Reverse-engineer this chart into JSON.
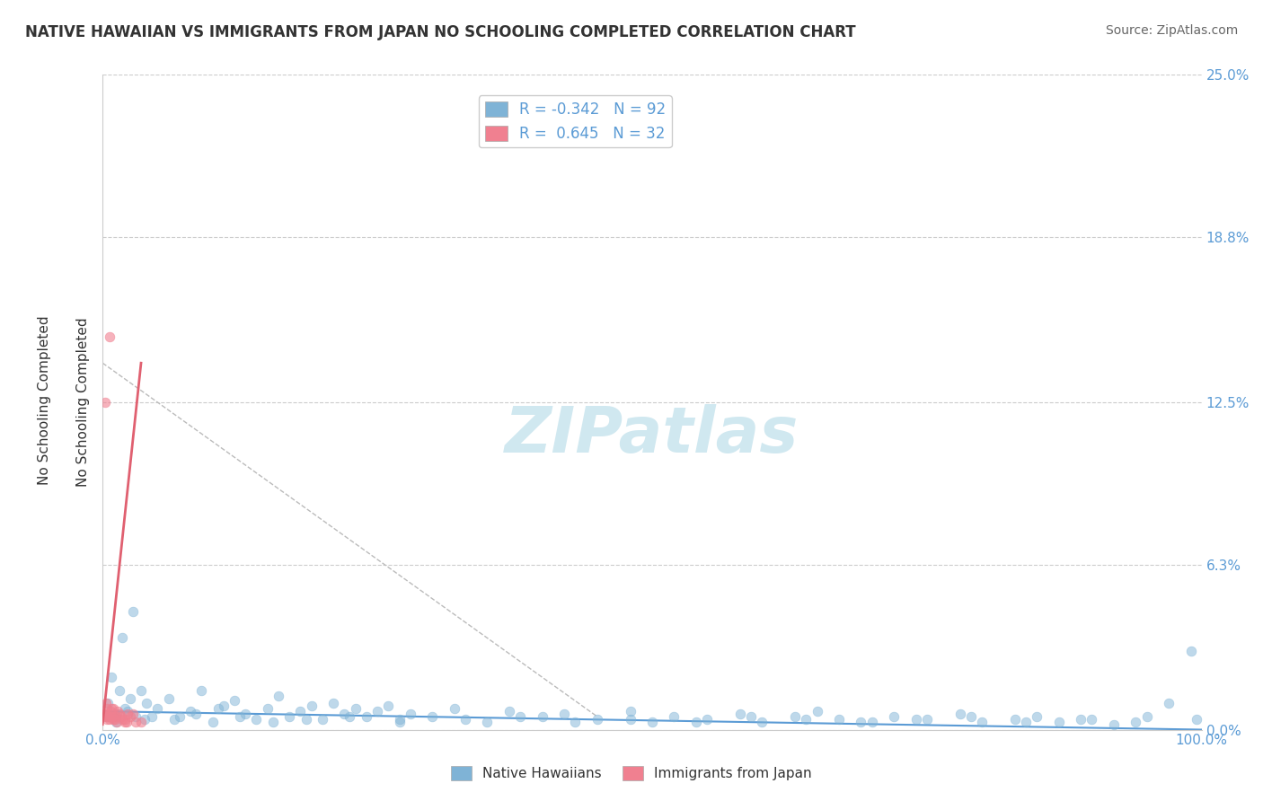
{
  "title": "NATIVE HAWAIIAN VS IMMIGRANTS FROM JAPAN NO SCHOOLING COMPLETED CORRELATION CHART",
  "source": "Source: ZipAtlas.com",
  "xlabel": "",
  "ylabel": "No Schooling Completed",
  "watermark": "ZIPatlas",
  "legend_entries": [
    {
      "label": "Native Hawaiians",
      "color": "#a8c4e0",
      "R": -0.342,
      "N": 92
    },
    {
      "label": "Immigrants from Japan",
      "color": "#f4a0b0",
      "R": 0.645,
      "N": 32
    }
  ],
  "ytick_labels": [
    "0.0%",
    "6.3%",
    "12.5%",
    "18.8%",
    "25.0%"
  ],
  "ytick_values": [
    0.0,
    6.3,
    12.5,
    18.8,
    25.0
  ],
  "xtick_labels": [
    "0.0%",
    "100.0%"
  ],
  "xtick_values": [
    0.0,
    100.0
  ],
  "xlim": [
    0.0,
    100.0
  ],
  "ylim": [
    0.0,
    25.0
  ],
  "blue_scatter": {
    "x": [
      0.5,
      1.0,
      1.5,
      2.0,
      2.5,
      0.8,
      1.2,
      3.0,
      4.0,
      5.0,
      6.0,
      7.0,
      8.0,
      9.0,
      10.0,
      11.0,
      12.0,
      13.0,
      14.0,
      15.0,
      16.0,
      17.0,
      18.0,
      19.0,
      20.0,
      21.0,
      22.0,
      23.0,
      24.0,
      25.0,
      26.0,
      27.0,
      28.0,
      30.0,
      32.0,
      35.0,
      37.0,
      40.0,
      42.0,
      45.0,
      48.0,
      50.0,
      52.0,
      55.0,
      58.0,
      60.0,
      63.0,
      65.0,
      67.0,
      70.0,
      72.0,
      75.0,
      78.0,
      80.0,
      83.0,
      85.0,
      87.0,
      90.0,
      92.0,
      95.0,
      97.0,
      99.0,
      1.8,
      2.8,
      3.5,
      4.5,
      6.5,
      8.5,
      10.5,
      12.5,
      15.5,
      18.5,
      22.5,
      27.0,
      33.0,
      38.0,
      43.0,
      48.0,
      54.0,
      59.0,
      64.0,
      69.0,
      74.0,
      79.0,
      84.0,
      89.0,
      94.0,
      99.5,
      0.3,
      1.3,
      2.3,
      3.8
    ],
    "y": [
      1.0,
      0.5,
      1.5,
      0.8,
      1.2,
      2.0,
      0.3,
      0.5,
      1.0,
      0.8,
      1.2,
      0.5,
      0.7,
      1.5,
      0.3,
      0.9,
      1.1,
      0.6,
      0.4,
      0.8,
      1.3,
      0.5,
      0.7,
      0.9,
      0.4,
      1.0,
      0.6,
      0.8,
      0.5,
      0.7,
      0.9,
      0.4,
      0.6,
      0.5,
      0.8,
      0.3,
      0.7,
      0.5,
      0.6,
      0.4,
      0.7,
      0.3,
      0.5,
      0.4,
      0.6,
      0.3,
      0.5,
      0.7,
      0.4,
      0.3,
      0.5,
      0.4,
      0.6,
      0.3,
      0.4,
      0.5,
      0.3,
      0.4,
      0.2,
      0.5,
      1.0,
      3.0,
      3.5,
      4.5,
      1.5,
      0.5,
      0.4,
      0.6,
      0.8,
      0.5,
      0.3,
      0.4,
      0.5,
      0.3,
      0.4,
      0.5,
      0.3,
      0.4,
      0.3,
      0.5,
      0.4,
      0.3,
      0.4,
      0.5,
      0.3,
      0.4,
      0.3,
      0.4,
      0.5,
      0.6,
      0.7,
      0.4
    ]
  },
  "pink_scatter": {
    "x": [
      0.2,
      0.5,
      0.8,
      1.0,
      1.5,
      2.0,
      2.5,
      0.3,
      0.7,
      1.2,
      1.8,
      2.8,
      3.5,
      0.4,
      0.9,
      1.4,
      0.6,
      1.1,
      2.2,
      0.1,
      0.3,
      0.6,
      1.0,
      1.7,
      2.3,
      3.0,
      0.4,
      0.8,
      1.3,
      2.0,
      0.5,
      0.2
    ],
    "y": [
      12.5,
      0.5,
      0.8,
      0.4,
      0.6,
      0.3,
      0.5,
      1.0,
      0.7,
      0.5,
      0.4,
      0.6,
      0.3,
      0.8,
      0.5,
      0.7,
      15.0,
      0.4,
      0.3,
      0.5,
      0.6,
      0.4,
      0.8,
      0.5,
      0.6,
      0.3,
      0.4,
      0.5,
      0.3,
      0.4,
      0.5,
      0.6
    ]
  },
  "blue_line": {
    "x": [
      0.0,
      100.0
    ],
    "slope": -0.0,
    "intercept": 0.5
  },
  "pink_line": {
    "x_start": 0.0,
    "x_end": 3.5,
    "y_start": 0.2,
    "y_end": 14.0
  },
  "title_color": "#333333",
  "source_color": "#666666",
  "axis_color": "#cccccc",
  "grid_color": "#cccccc",
  "blue_color": "#7fb3d6",
  "blue_line_color": "#5b9bd5",
  "pink_color": "#f08090",
  "pink_line_color": "#e06070",
  "watermark_color": "#d0e8f0",
  "background_color": "#ffffff"
}
